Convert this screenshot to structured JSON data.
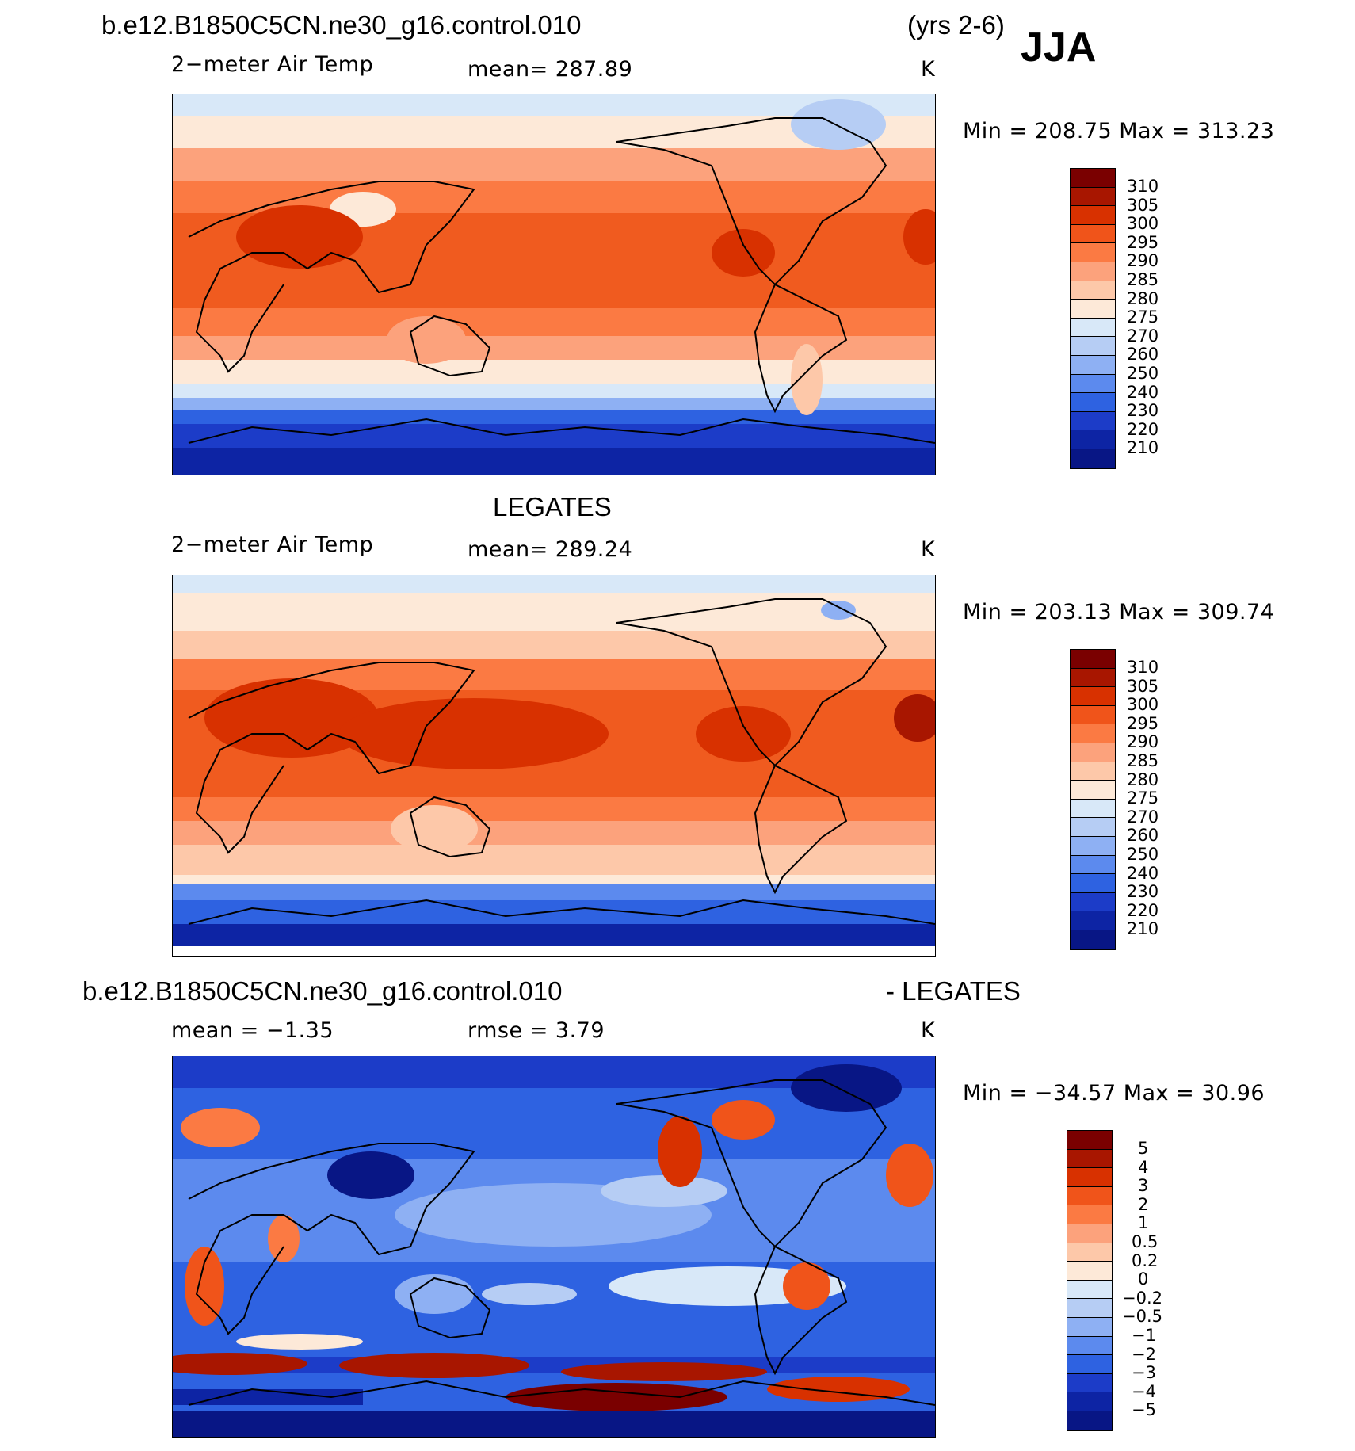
{
  "season": "JJA",
  "panels": [
    {
      "title": "b.e12.B1850C5CN.ne30_g16.control.010",
      "title_right": "(yrs 2-6)",
      "variable": "2−meter Air Temp",
      "stat": "mean=  287.89",
      "units": "K",
      "minmax": "Min  =  208.75  Max  =  313.23",
      "colorbar": [
        "310",
        "305",
        "300",
        "295",
        "290",
        "285",
        "280",
        "275",
        "270",
        "260",
        "250",
        "240",
        "230",
        "220",
        "210"
      ],
      "colors": [
        "#7a0000",
        "#a81600",
        "#d83100",
        "#f0541a",
        "#fb7a43",
        "#fca27c",
        "#fdc8a9",
        "#fde9d8",
        "#d8e8f8",
        "#b6cdf4",
        "#8eb0f3",
        "#5c8aee",
        "#2e62e1",
        "#1c3cc8",
        "#0d24a4",
        "#081685"
      ]
    },
    {
      "title": "LEGATES",
      "variable": "2−meter Air Temp",
      "stat": "mean=  289.24",
      "units": "K",
      "minmax": "Min  =  203.13  Max  =  309.74",
      "colorbar": [
        "310",
        "305",
        "300",
        "295",
        "290",
        "285",
        "280",
        "275",
        "270",
        "260",
        "250",
        "240",
        "230",
        "220",
        "210"
      ],
      "colors": [
        "#7a0000",
        "#a81600",
        "#d83100",
        "#f0541a",
        "#fb7a43",
        "#fca27c",
        "#fdc8a9",
        "#fde9d8",
        "#d8e8f8",
        "#b6cdf4",
        "#8eb0f3",
        "#5c8aee",
        "#2e62e1",
        "#1c3cc8",
        "#0d24a4",
        "#081685"
      ]
    },
    {
      "title": "b.e12.B1850C5CN.ne30_g16.control.010",
      "title_right": "- LEGATES",
      "stat": "mean  =    −1.35",
      "stat2": "rmse  =      3.79",
      "units": "K",
      "minmax": "Min  =  −34.57  Max  =     30.96",
      "colorbar": [
        "5",
        "4",
        "3",
        "2",
        "1",
        "0.5",
        "0.2",
        "0",
        "−0.2",
        "−0.5",
        "−1",
        "−2",
        "−3",
        "−4",
        "−5"
      ],
      "colors": [
        "#7a0000",
        "#a81600",
        "#d83100",
        "#f0541a",
        "#fb7a43",
        "#fca27c",
        "#fdc8a9",
        "#fde9d8",
        "#d8e8f8",
        "#b6cdf4",
        "#8eb0f3",
        "#5c8aee",
        "#2e62e1",
        "#1c3cc8",
        "#0d24a4",
        "#081685"
      ]
    }
  ]
}
